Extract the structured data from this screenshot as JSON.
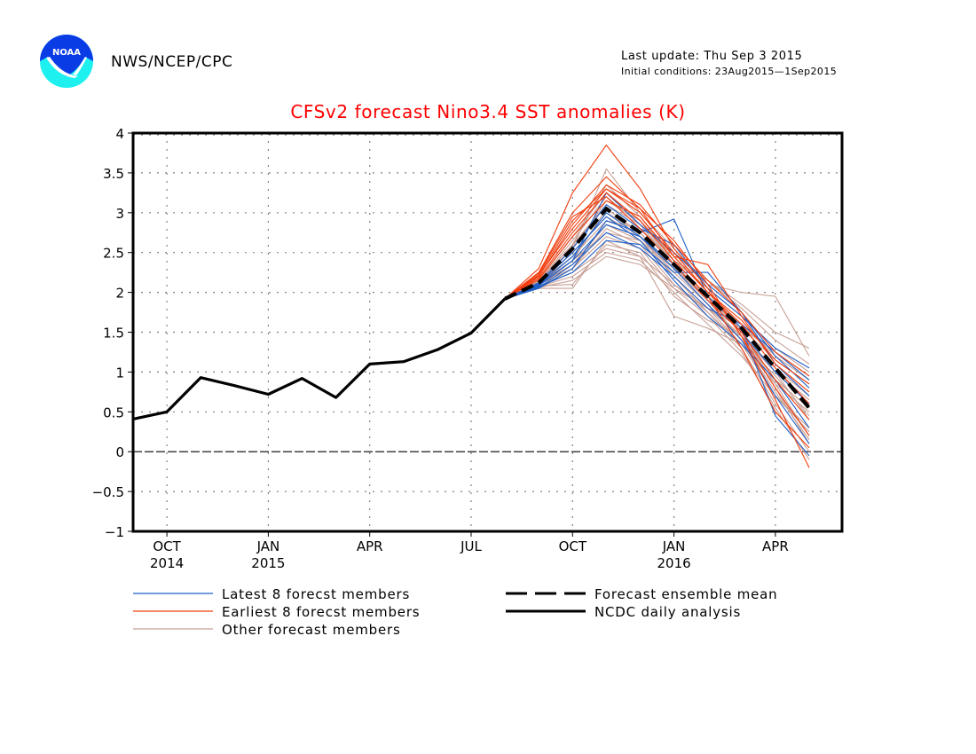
{
  "header": {
    "logo_label": "NOAA",
    "organization": "NWS/NCEP/CPC",
    "last_update": "Last update: Thu Sep 3 2015",
    "initial_conditions": "Initial conditions: 23Aug2015—1Sep2015"
  },
  "colors": {
    "title": "#ff0000",
    "latest": "#1f5fc8",
    "earliest": "#f23c0c",
    "other": "#c8a096",
    "mean": "#000000",
    "observed": "#000000",
    "logo_dark": "#0a3ce6",
    "logo_light": "#1ef0f0"
  },
  "chart_data": {
    "type": "line",
    "title": "CFSv2 forecast Nino3.4 SST anomalies (K)",
    "xlabel": "",
    "ylabel": "",
    "ylim": [
      -1,
      4
    ],
    "yticks": [
      "4",
      "3.5",
      "3",
      "2.5",
      "2",
      "1.5",
      "1",
      "0.5",
      "0",
      "−0.5",
      "−1"
    ],
    "ytick_values": [
      4,
      3.5,
      3,
      2.5,
      2,
      1.5,
      1,
      0.5,
      0,
      -0.5,
      -1
    ],
    "xlim_months": [
      "Sep 2014",
      "Jun 2015 +11"
    ],
    "x_months": [
      "Sep 2014",
      "Oct 2014",
      "Nov 2014",
      "Dec 2014",
      "Jan 2015",
      "Feb 2015",
      "Mar 2015",
      "Apr 2015",
      "May 2015",
      "Jun 2015",
      "Jul 2015",
      "Aug 2015",
      "Sep 2015",
      "Oct 2015",
      "Nov 2015",
      "Dec 2015",
      "Jan 2016",
      "Feb 2016",
      "Mar 2016",
      "Apr 2016",
      "May 2016"
    ],
    "xticks": [
      {
        "month_index": 1,
        "label": "OCT",
        "year": "2014"
      },
      {
        "month_index": 4,
        "label": "JAN",
        "year": "2015"
      },
      {
        "month_index": 7,
        "label": "APR",
        "year": ""
      },
      {
        "month_index": 10,
        "label": "JUL",
        "year": ""
      },
      {
        "month_index": 13,
        "label": "OCT",
        "year": ""
      },
      {
        "month_index": 16,
        "label": "JAN",
        "year": "2016"
      },
      {
        "month_index": 19,
        "label": "APR",
        "year": ""
      }
    ],
    "grid": true,
    "zero_line": true,
    "series": [
      {
        "name": "NCDC daily analysis",
        "kind": "observed",
        "start_index": 0,
        "values": [
          0.41,
          0.5,
          0.93,
          0.83,
          0.72,
          0.92,
          0.68,
          1.1,
          1.13,
          1.28,
          1.49,
          1.92
        ]
      },
      {
        "name": "Forecast ensemble mean",
        "kind": "mean",
        "start_index": 11,
        "values": [
          1.92,
          2.12,
          2.55,
          3.05,
          2.75,
          2.35,
          1.95,
          1.55,
          1.05,
          0.55
        ]
      },
      {
        "name": "Latest 8 forecst members",
        "kind": "latest",
        "start_index": 11,
        "members": [
          [
            1.92,
            2.05,
            2.3,
            2.9,
            2.75,
            2.92,
            1.95,
            1.55,
            0.45,
            -0.05
          ],
          [
            1.92,
            2.08,
            2.4,
            3.25,
            2.85,
            2.5,
            2.1,
            1.75,
            1.1,
            0.7
          ],
          [
            1.92,
            2.1,
            2.45,
            3.0,
            2.7,
            2.3,
            1.85,
            1.4,
            0.7,
            0.1
          ],
          [
            1.92,
            2.06,
            2.35,
            2.75,
            2.55,
            2.2,
            1.8,
            1.6,
            1.25,
            0.9
          ],
          [
            1.92,
            2.12,
            2.55,
            3.1,
            2.8,
            2.6,
            2.05,
            1.7,
            1.3,
            1.05
          ],
          [
            1.92,
            2.07,
            2.25,
            2.65,
            2.6,
            2.25,
            2.25,
            1.75,
            1.2,
            0.8
          ],
          [
            1.92,
            2.11,
            2.5,
            2.95,
            2.65,
            2.15,
            1.7,
            1.35,
            0.9,
            0.3
          ],
          [
            1.92,
            2.09,
            2.4,
            2.85,
            2.7,
            2.35,
            1.9,
            1.5,
            1.0,
            0.6
          ]
        ]
      },
      {
        "name": "Earliest 8 forecst members",
        "kind": "earliest",
        "start_index": 11,
        "members": [
          [
            1.92,
            2.3,
            3.25,
            3.85,
            3.3,
            2.55,
            2.05,
            1.45,
            0.65,
            -0.2
          ],
          [
            1.92,
            2.25,
            3.0,
            3.45,
            3.05,
            2.45,
            2.35,
            1.7,
            1.1,
            0.75
          ],
          [
            1.92,
            2.22,
            2.9,
            3.3,
            3.0,
            2.5,
            2.0,
            1.65,
            1.15,
            0.85
          ],
          [
            1.92,
            2.2,
            2.85,
            3.35,
            3.1,
            2.6,
            2.15,
            1.75,
            1.25,
            0.95
          ],
          [
            1.92,
            2.18,
            2.75,
            3.25,
            2.9,
            2.4,
            1.95,
            1.3,
            0.5,
            0.05
          ],
          [
            1.92,
            2.24,
            2.95,
            3.2,
            2.8,
            2.35,
            1.9,
            1.5,
            0.9,
            0.4
          ],
          [
            1.92,
            2.16,
            2.7,
            3.15,
            2.95,
            2.45,
            2.0,
            1.6,
            1.05,
            0.6
          ],
          [
            1.92,
            2.21,
            2.8,
            3.3,
            3.05,
            2.65,
            2.1,
            1.45,
            0.8,
            0.2
          ]
        ]
      },
      {
        "name": "Other forecast members",
        "kind": "other",
        "start_index": 11,
        "members": [
          [
            1.92,
            2.05,
            2.05,
            2.65,
            2.45,
            1.7,
            1.55,
            1.35,
            0.85,
            0.5
          ],
          [
            1.92,
            2.08,
            2.1,
            2.6,
            2.5,
            1.95,
            1.65,
            1.45,
            1.05,
            0.7
          ],
          [
            1.92,
            2.15,
            2.55,
            3.55,
            3.0,
            2.55,
            2.1,
            2.0,
            1.95,
            1.2
          ],
          [
            1.92,
            2.12,
            2.6,
            3.35,
            2.95,
            2.4,
            2.15,
            1.85,
            1.5,
            1.3
          ],
          [
            1.92,
            2.1,
            2.45,
            3.0,
            2.75,
            2.3,
            1.9,
            1.55,
            1.15,
            0.85
          ],
          [
            1.92,
            2.06,
            2.3,
            2.8,
            2.6,
            2.1,
            1.8,
            1.45,
            1.0,
            0.65
          ],
          [
            1.92,
            2.14,
            2.65,
            3.2,
            2.85,
            2.35,
            1.95,
            1.5,
            0.85,
            0.2
          ],
          [
            1.92,
            2.09,
            2.35,
            2.85,
            2.7,
            2.2,
            1.75,
            1.3,
            0.6,
            0.0
          ],
          [
            1.92,
            2.07,
            2.2,
            2.5,
            2.4,
            2.0,
            1.6,
            1.2,
            0.7,
            0.3
          ],
          [
            1.92,
            2.13,
            2.5,
            2.95,
            2.7,
            2.25,
            1.85,
            1.4,
            0.95,
            0.45
          ],
          [
            1.92,
            2.11,
            2.4,
            2.75,
            2.65,
            2.3,
            1.95,
            1.6,
            1.2,
            0.9
          ],
          [
            1.92,
            2.16,
            2.7,
            3.25,
            2.9,
            2.45,
            2.0,
            1.5,
            0.8,
            0.1
          ],
          [
            1.92,
            2.1,
            2.3,
            2.7,
            2.55,
            2.05,
            1.7,
            1.25,
            0.55,
            -0.1
          ],
          [
            1.92,
            2.12,
            2.45,
            2.9,
            2.8,
            2.4,
            2.05,
            1.7,
            1.3,
            1.0
          ],
          [
            1.92,
            2.08,
            2.25,
            2.55,
            2.45,
            2.1,
            1.75,
            1.35,
            0.9,
            0.55
          ],
          [
            1.92,
            2.14,
            2.6,
            3.1,
            2.85,
            2.5,
            2.15,
            1.8,
            1.4,
            1.1
          ],
          [
            1.92,
            2.09,
            2.4,
            3.05,
            2.75,
            2.3,
            1.85,
            1.45,
            1.0,
            0.4
          ],
          [
            1.92,
            2.06,
            2.15,
            2.45,
            2.35,
            2.05,
            1.8,
            1.55,
            1.25,
            0.95
          ],
          [
            1.92,
            2.13,
            2.55,
            3.15,
            2.9,
            2.35,
            1.9,
            1.4,
            0.75,
            0.15
          ],
          [
            1.92,
            2.11,
            2.35,
            2.85,
            2.65,
            2.2,
            1.8,
            1.35,
            0.7,
            0.25
          ]
        ]
      }
    ],
    "legend": {
      "placement": "bottom",
      "entries": [
        {
          "label": "Latest 8 forecst members",
          "kind": "latest"
        },
        {
          "label": "Earliest 8 forecst members",
          "kind": "earliest"
        },
        {
          "label": "Other forecast members",
          "kind": "other"
        },
        {
          "label": "Forecast ensemble mean",
          "kind": "mean"
        },
        {
          "label": "NCDC daily analysis",
          "kind": "observed"
        }
      ]
    }
  }
}
